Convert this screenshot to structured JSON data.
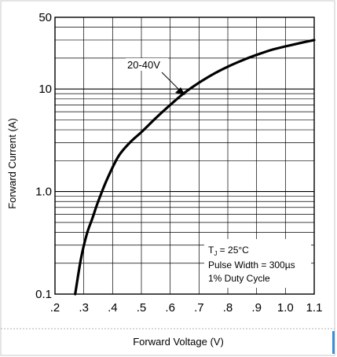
{
  "chart_data": {
    "type": "line",
    "title": "",
    "xlabel": "Forward Voltage (V)",
    "ylabel": "Forward Current (A)",
    "xscale": "linear",
    "yscale": "log",
    "xlim": [
      0.2,
      1.1
    ],
    "ylim": [
      0.1,
      50
    ],
    "x_ticks": [
      ".2",
      ".3",
      ".4",
      ".5",
      ".6",
      ".7",
      ".8",
      ".9",
      "1.0",
      "1.1"
    ],
    "x_tick_values": [
      0.2,
      0.3,
      0.4,
      0.5,
      0.6,
      0.7,
      0.8,
      0.9,
      1.0,
      1.1
    ],
    "y_ticks": [
      "0.1",
      "1.0",
      "10",
      "50"
    ],
    "y_tick_values": [
      0.1,
      1.0,
      10,
      50
    ],
    "grid": true,
    "series": [
      {
        "name": "20-40V",
        "x": [
          0.27,
          0.29,
          0.31,
          0.33,
          0.35,
          0.38,
          0.42,
          0.46,
          0.5,
          0.55,
          0.6,
          0.65,
          0.7,
          0.75,
          0.8,
          0.85,
          0.9,
          0.95,
          1.0,
          1.05,
          1.1
        ],
        "y": [
          0.1,
          0.22,
          0.38,
          0.55,
          0.8,
          1.3,
          2.2,
          3.0,
          3.8,
          5.2,
          7.0,
          9.2,
          11.5,
          14.0,
          16.5,
          19.0,
          21.5,
          24.0,
          26.0,
          28.0,
          30.0
        ]
      }
    ],
    "annotations": [
      {
        "text": "20-40V",
        "x": 0.61,
        "y": 20,
        "arrow_to_x": 0.655,
        "arrow_to_y": 11
      },
      {
        "text": "T",
        "sub": "J",
        "suffix": " = 25°C"
      },
      {
        "text": "Pulse Width = 300µs"
      },
      {
        "text": "1% Duty Cycle"
      }
    ]
  }
}
